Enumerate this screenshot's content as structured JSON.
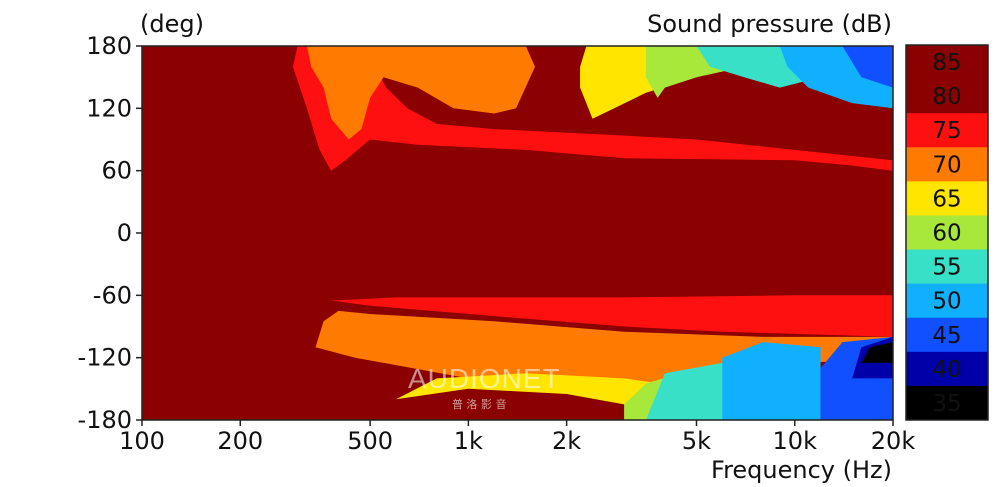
{
  "chart_data": {
    "type": "heatmap",
    "title": "Sound pressure  (dB)",
    "xlabel": "Frequency  (Hz)",
    "ylabel": "(deg)",
    "x_scale": "log",
    "xlim": [
      100,
      20000
    ],
    "ylim": [
      -180,
      180
    ],
    "x_ticks": [
      {
        "value": 100,
        "label": "100"
      },
      {
        "value": 200,
        "label": "200"
      },
      {
        "value": 500,
        "label": "500"
      },
      {
        "value": 1000,
        "label": "1k"
      },
      {
        "value": 2000,
        "label": "2k"
      },
      {
        "value": 5000,
        "label": "5k"
      },
      {
        "value": 10000,
        "label": "10k"
      },
      {
        "value": 20000,
        "label": "20k"
      }
    ],
    "y_ticks": [
      {
        "value": 180,
        "label": "180"
      },
      {
        "value": 120,
        "label": "120"
      },
      {
        "value": 60,
        "label": "60"
      },
      {
        "value": 0,
        "label": "0"
      },
      {
        "value": -60,
        "label": "-60"
      },
      {
        "value": -120,
        "label": "-120"
      },
      {
        "value": -180,
        "label": "-180"
      }
    ],
    "colorbar": {
      "levels": [
        85,
        80,
        75,
        70,
        65,
        60,
        55,
        50,
        45,
        40,
        35
      ],
      "labels": [
        "85",
        "80",
        "75",
        "70",
        "65",
        "60",
        "55",
        "50",
        "45",
        "40",
        "35"
      ],
      "colors": [
        "#8b0000",
        "#8b0000",
        "#ff1010",
        "#ff7a00",
        "#ffe500",
        "#a8e83a",
        "#38e0c8",
        "#10b0ff",
        "#1050ff",
        "#0000a8",
        "#000000"
      ]
    },
    "contour_bands": [
      {
        "level": 80,
        "points": [
          [
            100,
            180
          ],
          [
            280,
            180
          ],
          [
            270,
            150
          ],
          [
            280,
            100
          ],
          [
            310,
            80
          ],
          [
            400,
            40
          ],
          [
            380,
            30
          ],
          [
            3000,
            32
          ],
          [
            10000,
            28
          ],
          [
            20000,
            30
          ],
          [
            20000,
            -30
          ],
          [
            10000,
            -55
          ],
          [
            3000,
            -60
          ],
          [
            500,
            -65
          ],
          [
            380,
            -65
          ],
          [
            300,
            -60
          ],
          [
            280,
            -100
          ],
          [
            260,
            -150
          ],
          [
            280,
            -180
          ],
          [
            100,
            -180
          ]
        ]
      },
      {
        "level": 75,
        "points": [
          [
            300,
            180
          ],
          [
            480,
            180
          ],
          [
            560,
            140
          ],
          [
            650,
            120
          ],
          [
            800,
            105
          ],
          [
            1200,
            100
          ],
          [
            2500,
            95
          ],
          [
            5000,
            90
          ],
          [
            10000,
            80
          ],
          [
            20000,
            70
          ],
          [
            20000,
            60
          ],
          [
            15000,
            65
          ],
          [
            10000,
            70
          ],
          [
            3000,
            72
          ],
          [
            1500,
            80
          ],
          [
            700,
            85
          ],
          [
            500,
            90
          ],
          [
            420,
            70
          ],
          [
            380,
            60
          ],
          [
            350,
            80
          ],
          [
            320,
            120
          ],
          [
            290,
            160
          ]
        ]
      },
      {
        "level": 75,
        "points": [
          [
            380,
            -65
          ],
          [
            500,
            -70
          ],
          [
            1200,
            -80
          ],
          [
            3000,
            -90
          ],
          [
            6000,
            -95
          ],
          [
            20000,
            -100
          ],
          [
            20000,
            -60
          ],
          [
            10000,
            -60
          ],
          [
            3000,
            -62
          ],
          [
            600,
            -62
          ]
        ]
      },
      {
        "level": 70,
        "points": [
          [
            320,
            180
          ],
          [
            1500,
            180
          ],
          [
            1600,
            160
          ],
          [
            1400,
            120
          ],
          [
            1200,
            115
          ],
          [
            900,
            120
          ],
          [
            700,
            140
          ],
          [
            550,
            150
          ],
          [
            500,
            130
          ],
          [
            470,
            100
          ],
          [
            430,
            90
          ],
          [
            380,
            110
          ],
          [
            360,
            140
          ],
          [
            330,
            160
          ]
        ]
      },
      {
        "level": 70,
        "points": [
          [
            340,
            -110
          ],
          [
            450,
            -120
          ],
          [
            1000,
            -140
          ],
          [
            2000,
            -150
          ],
          [
            3000,
            -150
          ],
          [
            6000,
            -130
          ],
          [
            20000,
            -120
          ],
          [
            20000,
            -100
          ],
          [
            8000,
            -100
          ],
          [
            3000,
            -95
          ],
          [
            1200,
            -85
          ],
          [
            500,
            -78
          ],
          [
            400,
            -75
          ],
          [
            360,
            -85
          ]
        ]
      },
      {
        "level": 65,
        "points": [
          [
            2300,
            180
          ],
          [
            6000,
            180
          ],
          [
            5000,
            150
          ],
          [
            3500,
            135
          ],
          [
            2800,
            120
          ],
          [
            2400,
            110
          ],
          [
            2200,
            140
          ],
          [
            2200,
            160
          ]
        ]
      },
      {
        "level": 65,
        "points": [
          [
            600,
            -160
          ],
          [
            1000,
            -150
          ],
          [
            2000,
            -155
          ],
          [
            3000,
            -165
          ],
          [
            5000,
            -170
          ],
          [
            5000,
            -150
          ],
          [
            3000,
            -140
          ],
          [
            1500,
            -135
          ],
          [
            800,
            -140
          ]
        ]
      },
      {
        "level": 60,
        "points": [
          [
            3500,
            180
          ],
          [
            8000,
            180
          ],
          [
            7000,
            160
          ],
          [
            5000,
            150
          ],
          [
            4000,
            140
          ],
          [
            3800,
            130
          ],
          [
            3500,
            150
          ]
        ]
      },
      {
        "level": 60,
        "points": [
          [
            3000,
            -180
          ],
          [
            8000,
            -180
          ],
          [
            8000,
            -140
          ],
          [
            5000,
            -130
          ],
          [
            3500,
            -145
          ],
          [
            3000,
            -165
          ]
        ]
      },
      {
        "level": 55,
        "points": [
          [
            5000,
            180
          ],
          [
            12000,
            180
          ],
          [
            12000,
            150
          ],
          [
            9000,
            140
          ],
          [
            7000,
            150
          ],
          [
            5500,
            160
          ]
        ]
      },
      {
        "level": 55,
        "points": [
          [
            3500,
            -180
          ],
          [
            9000,
            -180
          ],
          [
            9000,
            -130
          ],
          [
            6000,
            -125
          ],
          [
            4000,
            -135
          ]
        ]
      },
      {
        "level": 50,
        "points": [
          [
            9000,
            180
          ],
          [
            20000,
            180
          ],
          [
            20000,
            120
          ],
          [
            15000,
            125
          ],
          [
            11000,
            140
          ],
          [
            9500,
            160
          ]
        ]
      },
      {
        "level": 50,
        "points": [
          [
            6000,
            -180
          ],
          [
            12000,
            -180
          ],
          [
            12000,
            -110
          ],
          [
            8000,
            -105
          ],
          [
            6000,
            -120
          ]
        ]
      },
      {
        "level": 45,
        "points": [
          [
            14000,
            180
          ],
          [
            20000,
            180
          ],
          [
            20000,
            140
          ],
          [
            16000,
            150
          ]
        ]
      },
      {
        "level": 45,
        "points": [
          [
            12000,
            -180
          ],
          [
            20000,
            -180
          ],
          [
            20000,
            -100
          ],
          [
            14000,
            -105
          ],
          [
            12000,
            -130
          ]
        ]
      },
      {
        "level": 40,
        "points": [
          [
            15000,
            -140
          ],
          [
            20000,
            -140
          ],
          [
            20000,
            -100
          ],
          [
            16000,
            -110
          ]
        ]
      },
      {
        "level": 35,
        "points": [
          [
            16000,
            -125
          ],
          [
            20000,
            -125
          ],
          [
            20000,
            -105
          ],
          [
            17000,
            -110
          ]
        ]
      }
    ],
    "watermark": {
      "text": "AUDIONET",
      "subtext": "普 洛 影 音"
    }
  }
}
